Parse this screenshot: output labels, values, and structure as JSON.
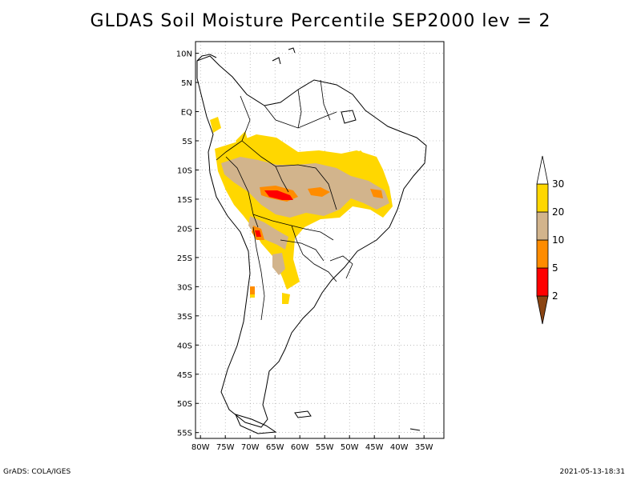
{
  "title": "GLDAS Soil Moisture Percentile SEP2000 lev = 2",
  "map": {
    "lon_range": [
      -81,
      -31
    ],
    "lat_range": [
      -56,
      12
    ],
    "lon_ticks": [
      {
        "value": -80,
        "label": "80W"
      },
      {
        "value": -75,
        "label": "75W"
      },
      {
        "value": -70,
        "label": "70W"
      },
      {
        "value": -65,
        "label": "65W"
      },
      {
        "value": -60,
        "label": "60W"
      },
      {
        "value": -55,
        "label": "55W"
      },
      {
        "value": -50,
        "label": "50W"
      },
      {
        "value": -45,
        "label": "45W"
      },
      {
        "value": -40,
        "label": "40W"
      },
      {
        "value": -35,
        "label": "35W"
      }
    ],
    "lat_ticks": [
      {
        "value": 10,
        "label": "10N"
      },
      {
        "value": 5,
        "label": "5N"
      },
      {
        "value": 0,
        "label": "EQ"
      },
      {
        "value": -5,
        "label": "5S"
      },
      {
        "value": -10,
        "label": "10S"
      },
      {
        "value": -15,
        "label": "15S"
      },
      {
        "value": -20,
        "label": "20S"
      },
      {
        "value": -25,
        "label": "25S"
      },
      {
        "value": -30,
        "label": "30S"
      },
      {
        "value": -35,
        "label": "35S"
      },
      {
        "value": -40,
        "label": "40S"
      },
      {
        "value": -45,
        "label": "45S"
      },
      {
        "value": -50,
        "label": "50S"
      },
      {
        "value": -55,
        "label": "55S"
      }
    ],
    "grid": true
  },
  "colorbar": {
    "levels": [
      "2",
      "5",
      "10",
      "20",
      "30"
    ],
    "colors": [
      "#8b4513",
      "#ff0000",
      "#ff8c00",
      "#d2b48c",
      "#ffd700",
      "#ffffff"
    ]
  },
  "footer": {
    "left": "GrADS: COLA/IGES",
    "right": "2021-05-13-18:31"
  }
}
